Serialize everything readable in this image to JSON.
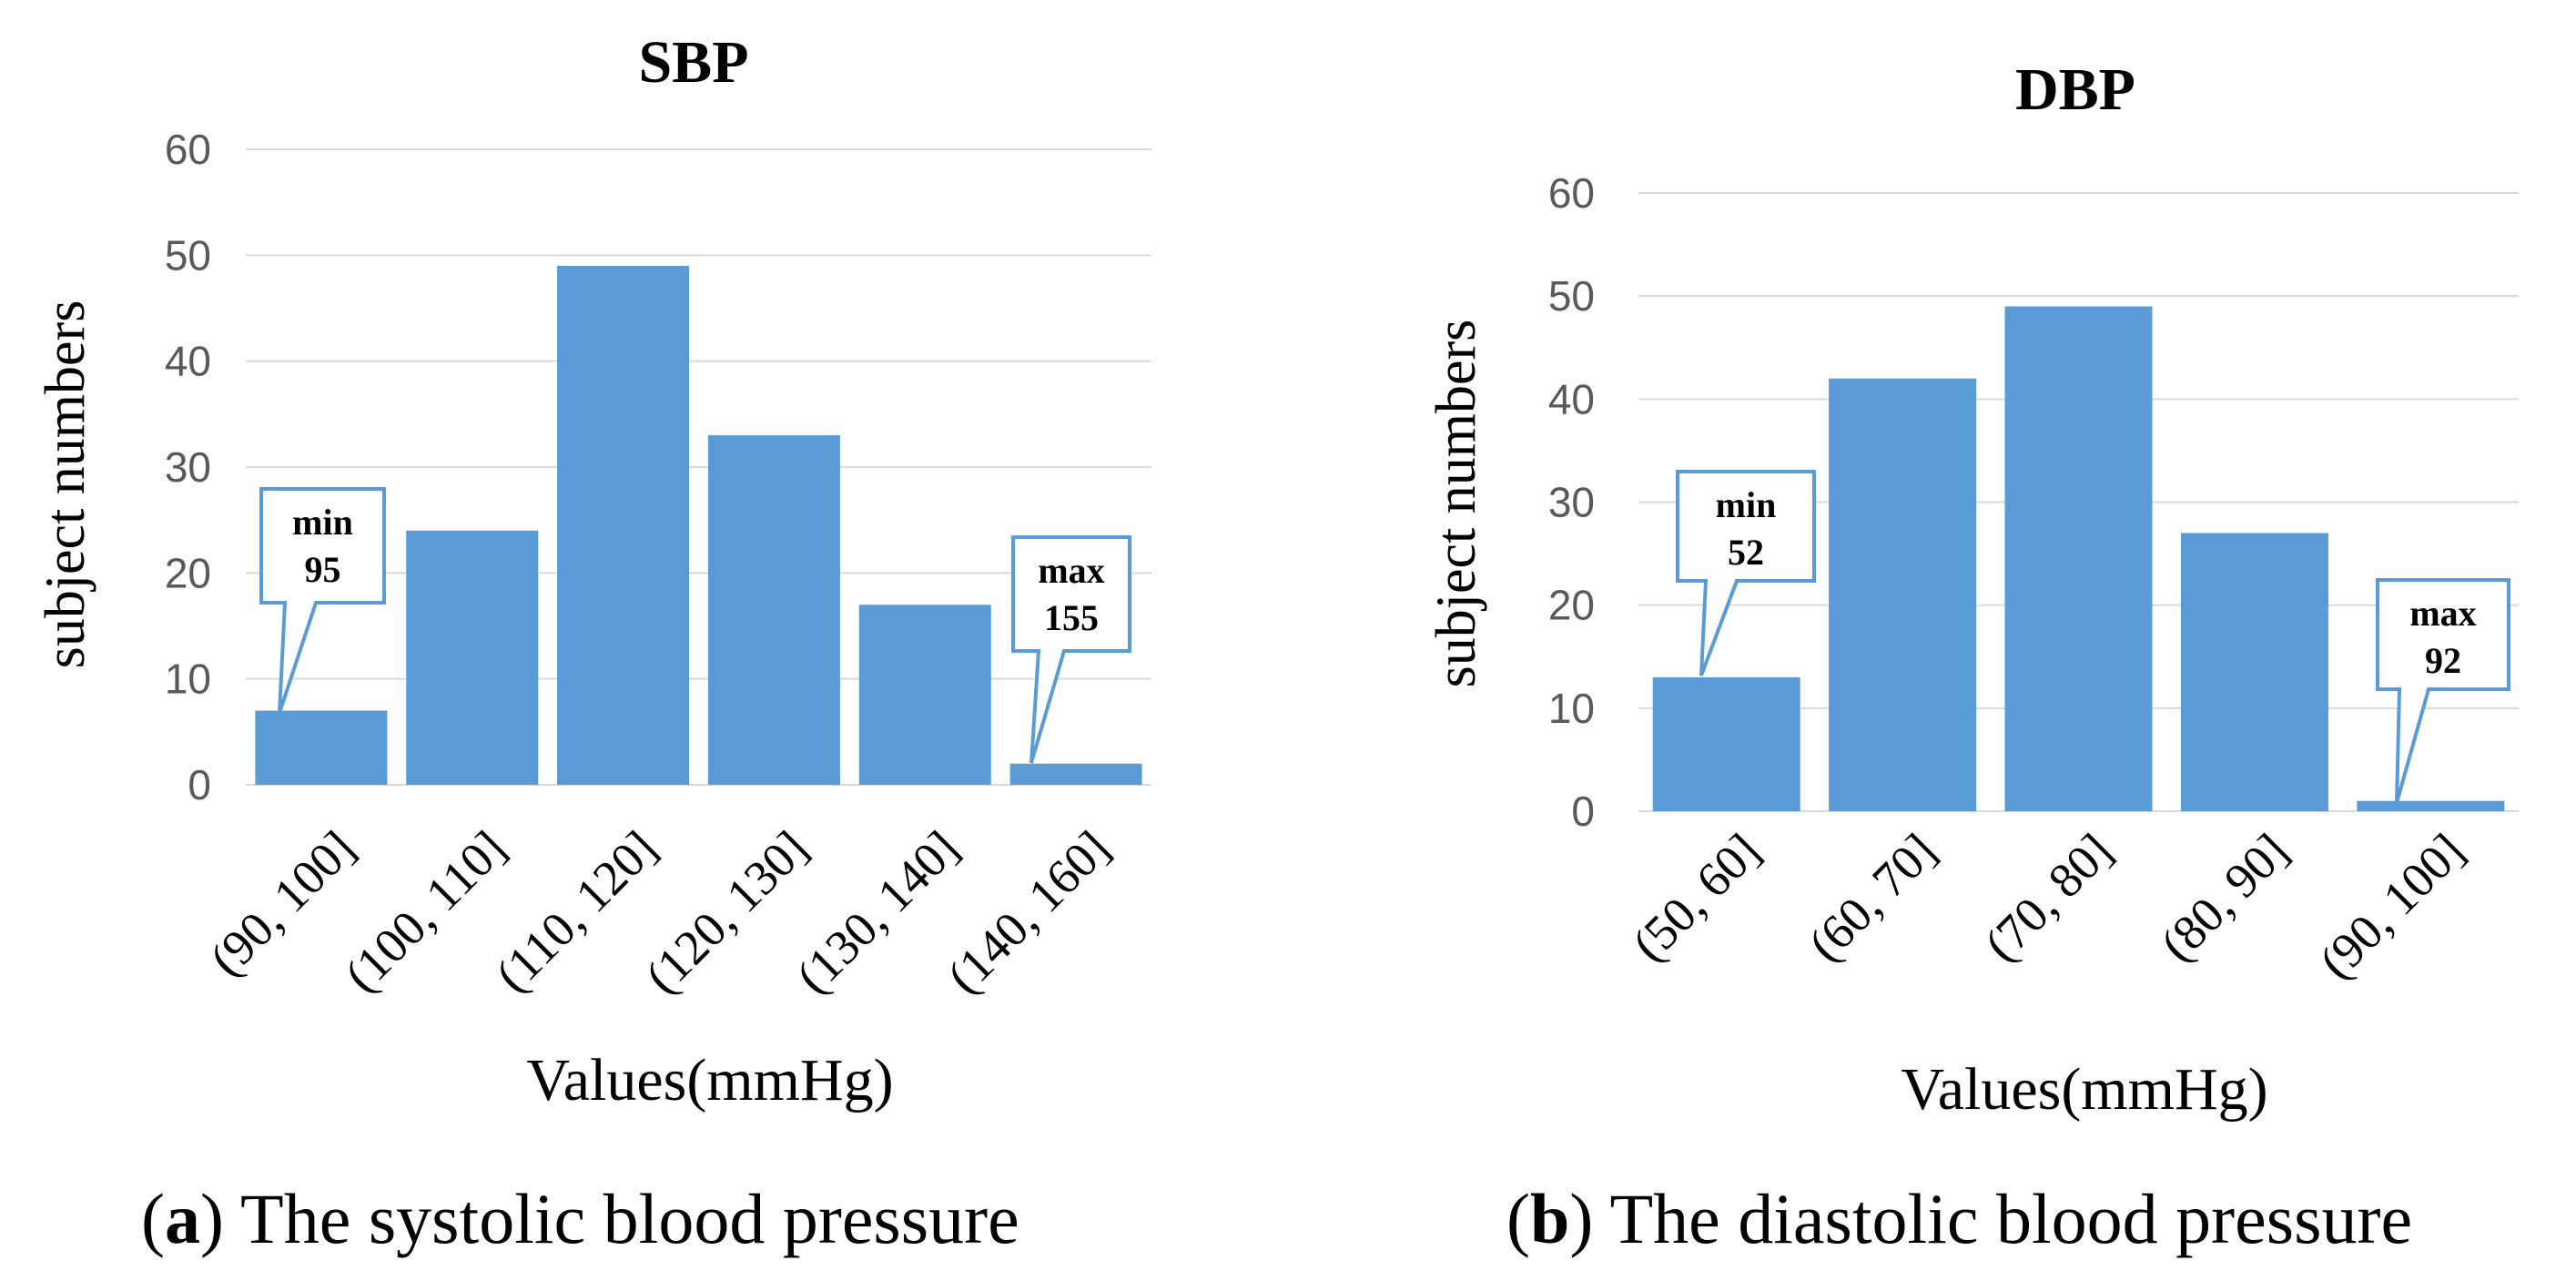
{
  "colors": {
    "bar": "#5b9bd5",
    "grid": "#d9d9d9",
    "tick_text": "#595959",
    "callout_border": "#5b9bd5"
  },
  "chart_data": [
    {
      "id": "sbp",
      "type": "bar",
      "title": "SBP",
      "xlabel": "Values(mmHg)",
      "ylabel": "subject numbers",
      "ylim": [
        0,
        60
      ],
      "yticks": [
        0,
        10,
        20,
        30,
        40,
        50,
        60
      ],
      "grid": true,
      "categories": [
        "(90, 100]",
        "(100, 110]",
        "(110, 120]",
        "(120, 130]",
        "(130, 140]",
        "(140, 160]"
      ],
      "values": [
        7,
        24,
        49,
        33,
        17,
        2
      ],
      "annotations": [
        {
          "category": "(90, 100]",
          "label": "min",
          "value_text": "95"
        },
        {
          "category": "(140, 160]",
          "label": "max",
          "value_text": "155"
        }
      ]
    },
    {
      "id": "dbp",
      "type": "bar",
      "title": "DBP",
      "xlabel": "Values(mmHg)",
      "ylabel": "subject numbers",
      "ylim": [
        0,
        60
      ],
      "yticks": [
        0,
        10,
        20,
        30,
        40,
        50,
        60
      ],
      "grid": true,
      "categories": [
        "(50, 60]",
        "(60, 70]",
        "(70, 80]",
        "(80, 90]",
        "(90, 100]"
      ],
      "values": [
        13,
        42,
        49,
        27,
        1
      ],
      "annotations": [
        {
          "category": "(50, 60]",
          "label": "min",
          "value_text": "52"
        },
        {
          "category": "(90, 100]",
          "label": "max",
          "value_text": "92"
        }
      ]
    }
  ],
  "captions": [
    {
      "letter": "a",
      "text": " The systolic blood pressure"
    },
    {
      "letter": "b",
      "text": " The diastolic blood pressure"
    }
  ]
}
